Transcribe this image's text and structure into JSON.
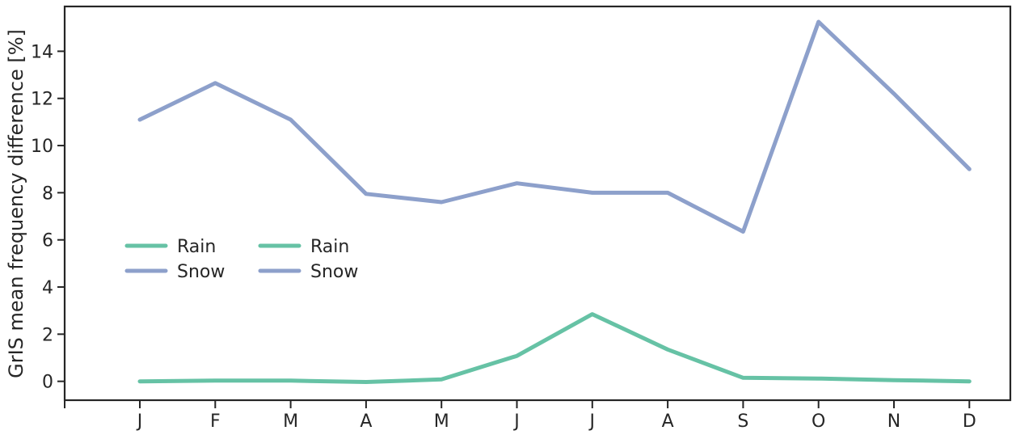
{
  "chart_data": {
    "type": "line",
    "title": "",
    "xlabel": "",
    "ylabel": "GrIS mean frequency difference [%]",
    "categories": [
      "J",
      "F",
      "M",
      "A",
      "M",
      "J",
      "J",
      "A",
      "S",
      "O",
      "N",
      "D"
    ],
    "series": [
      {
        "name": "Rain",
        "color": "#66c2a5",
        "values": [
          0.0,
          0.03,
          0.03,
          -0.03,
          0.08,
          1.08,
          2.85,
          1.35,
          0.15,
          0.12,
          0.05,
          0.0
        ]
      },
      {
        "name": "Snow",
        "color": "#8da0cb",
        "values": [
          11.1,
          12.65,
          11.1,
          7.95,
          7.6,
          8.4,
          8.0,
          8.0,
          6.35,
          15.25,
          12.2,
          9.0
        ]
      }
    ],
    "ylim": [
      -0.8,
      15.9
    ],
    "yticks": [
      0,
      2,
      4,
      6,
      8,
      10,
      12,
      14
    ],
    "grid": false,
    "legend": {
      "placement": "center-left",
      "columns": [
        [
          {
            "label": "Rain",
            "color": "#66c2a5"
          },
          {
            "label": "Snow",
            "color": "#8da0cb"
          }
        ],
        [
          {
            "label": "Rain",
            "color": "#66c2a5"
          },
          {
            "label": "Snow",
            "color": "#8da0cb"
          }
        ]
      ]
    }
  }
}
